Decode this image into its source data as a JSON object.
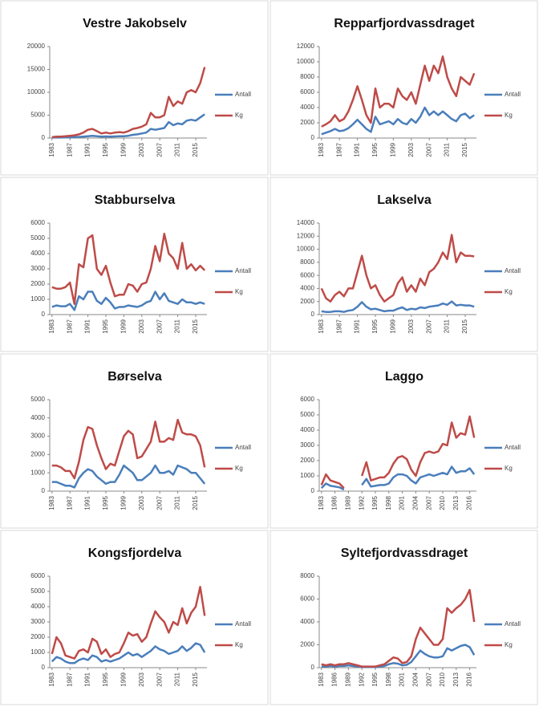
{
  "chart_data": [
    {
      "type": "line",
      "title": "Vestre Jakobselv",
      "categories": [
        "1983",
        null,
        null,
        null,
        "1987",
        null,
        null,
        null,
        "1991",
        null,
        null,
        null,
        "1995",
        null,
        null,
        null,
        "1999",
        null,
        null,
        null,
        "2003",
        null,
        null,
        null,
        "2007",
        null,
        null,
        null,
        "2011",
        null,
        null,
        null,
        "2015",
        null,
        null
      ],
      "series": [
        {
          "name": "Antall",
          "color": "#4a7ebb",
          "values": [
            100,
            100,
            100,
            150,
            150,
            200,
            250,
            300,
            400,
            500,
            400,
            300,
            350,
            300,
            350,
            400,
            400,
            500,
            700,
            800,
            1000,
            1200,
            2000,
            1800,
            2000,
            2200,
            3500,
            2800,
            3200,
            3000,
            3800,
            4000,
            3800,
            4500,
            5200
          ]
        },
        {
          "name": "Kg",
          "color": "#be4b48",
          "values": [
            200,
            300,
            300,
            400,
            500,
            600,
            800,
            1200,
            1800,
            2000,
            1500,
            1000,
            1200,
            1000,
            1200,
            1300,
            1200,
            1500,
            2000,
            2200,
            2500,
            3000,
            5500,
            4500,
            4500,
            5000,
            9000,
            7000,
            8000,
            7500,
            10000,
            10500,
            10000,
            12000,
            15500
          ]
        }
      ],
      "ylim": [
        0,
        20000
      ],
      "yticks": [
        0,
        5000,
        10000,
        15000,
        20000
      ]
    },
    {
      "type": "line",
      "title": "Repparfjordvassdraget",
      "categories": [
        "1983",
        null,
        null,
        null,
        "1987",
        null,
        null,
        null,
        "1991",
        null,
        null,
        null,
        "1995",
        null,
        null,
        null,
        "1999",
        null,
        null,
        null,
        "2003",
        null,
        null,
        null,
        "2007",
        null,
        null,
        null,
        "2011",
        null,
        null,
        null,
        "2015",
        null,
        null
      ],
      "series": [
        {
          "name": "Antall",
          "color": "#4a7ebb",
          "values": [
            500,
            700,
            900,
            1200,
            900,
            1000,
            1300,
            1800,
            2400,
            1800,
            1200,
            800,
            2800,
            1800,
            2000,
            2200,
            1800,
            2500,
            2000,
            1800,
            2500,
            2000,
            2800,
            4000,
            3000,
            3500,
            3000,
            3500,
            3000,
            2500,
            2200,
            3000,
            3200,
            2600,
            3000
          ]
        },
        {
          "name": "Kg",
          "color": "#be4b48",
          "values": [
            1500,
            1800,
            2200,
            3000,
            2200,
            2500,
            3500,
            5000,
            6800,
            5000,
            3000,
            2000,
            6500,
            4000,
            4500,
            4500,
            4000,
            6500,
            5500,
            5000,
            6000,
            4500,
            7000,
            9500,
            7500,
            9500,
            8500,
            10700,
            8000,
            6500,
            5500,
            8000,
            7500,
            7000,
            8500
          ]
        }
      ],
      "ylim": [
        0,
        12000
      ],
      "yticks": [
        0,
        2000,
        4000,
        6000,
        8000,
        10000,
        12000
      ]
    },
    {
      "type": "line",
      "title": "Stabburselva",
      "categories": [
        "1983",
        null,
        null,
        null,
        "1987",
        null,
        null,
        null,
        "1991",
        null,
        null,
        null,
        "1995",
        null,
        null,
        null,
        "1999",
        null,
        null,
        null,
        "2003",
        null,
        null,
        null,
        "2007",
        null,
        null,
        null,
        "2011",
        null,
        null,
        null,
        "2015",
        null,
        null
      ],
      "series": [
        {
          "name": "Antall",
          "color": "#4a7ebb",
          "values": [
            500,
            600,
            550,
            550,
            700,
            300,
            1200,
            1000,
            1500,
            1500,
            900,
            700,
            1100,
            800,
            400,
            500,
            500,
            600,
            550,
            500,
            600,
            800,
            900,
            1500,
            1000,
            1400,
            900,
            800,
            700,
            1000,
            800,
            800,
            700,
            800,
            700
          ]
        },
        {
          "name": "Kg",
          "color": "#be4b48",
          "values": [
            1800,
            1700,
            1700,
            1800,
            2100,
            700,
            3300,
            3100,
            5000,
            5200,
            3000,
            2600,
            3200,
            2100,
            1200,
            1300,
            1300,
            2000,
            1900,
            1500,
            2000,
            2100,
            3000,
            4500,
            3500,
            5300,
            4000,
            3700,
            3000,
            4700,
            3000,
            3300,
            2900,
            3200,
            2900
          ]
        }
      ],
      "ylim": [
        0,
        6000
      ],
      "yticks": [
        0,
        1000,
        2000,
        3000,
        4000,
        5000,
        6000
      ]
    },
    {
      "type": "line",
      "title": "Lakselva",
      "categories": [
        "1983",
        null,
        null,
        null,
        "1987",
        null,
        null,
        null,
        "1991",
        null,
        null,
        null,
        "1995",
        null,
        null,
        null,
        "1999",
        null,
        null,
        null,
        "2003",
        null,
        null,
        null,
        "2007",
        null,
        null,
        null,
        "2011",
        null,
        null,
        null,
        "2015",
        null,
        null
      ],
      "series": [
        {
          "name": "Antall",
          "color": "#4a7ebb",
          "values": [
            500,
            400,
            400,
            500,
            500,
            400,
            600,
            700,
            1200,
            1900,
            1200,
            800,
            900,
            700,
            500,
            600,
            600,
            900,
            1100,
            700,
            900,
            800,
            1100,
            1000,
            1200,
            1300,
            1400,
            1700,
            1500,
            2000,
            1400,
            1500,
            1400,
            1400,
            1200
          ]
        },
        {
          "name": "Kg",
          "color": "#be4b48",
          "values": [
            4000,
            2500,
            2000,
            3000,
            3500,
            2800,
            4000,
            4000,
            6500,
            9000,
            6000,
            4000,
            4500,
            3000,
            2000,
            2500,
            3000,
            4800,
            5700,
            3500,
            4500,
            3500,
            5500,
            4500,
            6500,
            7000,
            8000,
            9500,
            8500,
            12200,
            8000,
            9500,
            9000,
            9000,
            8900
          ]
        }
      ],
      "ylim": [
        0,
        14000
      ],
      "yticks": [
        0,
        2000,
        4000,
        6000,
        8000,
        10000,
        12000,
        14000
      ]
    },
    {
      "type": "line",
      "title": "Børselva",
      "categories": [
        "1983",
        null,
        null,
        null,
        "1987",
        null,
        null,
        null,
        "1991",
        null,
        null,
        null,
        "1995",
        null,
        null,
        null,
        "1999",
        null,
        null,
        null,
        "2003",
        null,
        null,
        null,
        "2007",
        null,
        null,
        null,
        "2011",
        null,
        null,
        null,
        "2015",
        null,
        null
      ],
      "series": [
        {
          "name": "Antall",
          "color": "#4a7ebb",
          "values": [
            500,
            500,
            400,
            300,
            300,
            200,
            700,
            1000,
            1200,
            1100,
            800,
            600,
            400,
            500,
            500,
            900,
            1400,
            1200,
            1000,
            600,
            600,
            800,
            1000,
            1400,
            1000,
            1000,
            1100,
            900,
            1400,
            1300,
            1200,
            1000,
            1000,
            700,
            400
          ]
        },
        {
          "name": "Kg",
          "color": "#be4b48",
          "values": [
            1400,
            1400,
            1300,
            1100,
            1100,
            700,
            1600,
            2800,
            3500,
            3400,
            2500,
            1800,
            1200,
            1500,
            1400,
            2200,
            3000,
            3300,
            3100,
            1800,
            1900,
            2300,
            2700,
            3800,
            2700,
            2700,
            2900,
            2800,
            3900,
            3200,
            3100,
            3100,
            3000,
            2500,
            1300
          ]
        }
      ],
      "ylim": [
        0,
        5000
      ],
      "yticks": [
        0,
        1000,
        2000,
        3000,
        4000,
        5000
      ]
    },
    {
      "type": "line",
      "title": "Laggo",
      "categories": [
        "1983",
        null,
        null,
        "1986",
        null,
        null,
        "1989",
        null,
        null,
        "1992",
        null,
        null,
        "1995",
        null,
        null,
        "1998",
        null,
        null,
        "2001",
        null,
        null,
        "2004",
        null,
        null,
        "2007",
        null,
        null,
        "2010",
        null,
        null,
        "2013",
        null,
        null,
        "2016",
        null
      ],
      "series": [
        {
          "name": "Antall",
          "color": "#4a7ebb",
          "values": [
            200,
            500,
            350,
            300,
            250,
            100,
            null,
            null,
            null,
            400,
            800,
            300,
            350,
            400,
            400,
            500,
            900,
            1100,
            1100,
            1000,
            700,
            500,
            900,
            1000,
            1100,
            1000,
            1100,
            1200,
            1100,
            1600,
            1200,
            1300,
            1300,
            1500,
            1100
          ]
        },
        {
          "name": "Kg",
          "color": "#be4b48",
          "values": [
            400,
            1100,
            700,
            600,
            500,
            200,
            null,
            null,
            null,
            1000,
            1900,
            700,
            800,
            900,
            900,
            1200,
            1800,
            2200,
            2300,
            2100,
            1400,
            1000,
            1900,
            2500,
            2600,
            2500,
            2600,
            3100,
            3000,
            4500,
            3500,
            3800,
            3700,
            4900,
            3500
          ]
        }
      ],
      "ylim": [
        0,
        6000
      ],
      "yticks": [
        0,
        1000,
        2000,
        3000,
        4000,
        5000,
        6000
      ]
    },
    {
      "type": "line",
      "title": "Kongsfjordelva",
      "categories": [
        "1983",
        null,
        null,
        null,
        "1987",
        null,
        null,
        null,
        "1991",
        null,
        null,
        null,
        "1995",
        null,
        null,
        null,
        "1999",
        null,
        null,
        null,
        "2003",
        null,
        null,
        null,
        "2007",
        null,
        null,
        null,
        "2011",
        null,
        null,
        null,
        "2015",
        null,
        null
      ],
      "series": [
        {
          "name": "Antall",
          "color": "#4a7ebb",
          "values": [
            400,
            700,
            600,
            400,
            300,
            300,
            500,
            600,
            500,
            800,
            700,
            400,
            500,
            400,
            500,
            600,
            800,
            1000,
            800,
            900,
            700,
            900,
            1100,
            1400,
            1200,
            1100,
            900,
            1000,
            1100,
            1400,
            1100,
            1300,
            1600,
            1500,
            1000
          ]
        },
        {
          "name": "Kg",
          "color": "#be4b48",
          "values": [
            900,
            2000,
            1600,
            800,
            700,
            600,
            1100,
            1200,
            1000,
            1900,
            1700,
            900,
            1200,
            700,
            900,
            1000,
            1600,
            2300,
            2100,
            2200,
            1700,
            2000,
            2900,
            3700,
            3300,
            3000,
            2300,
            3000,
            2800,
            3900,
            2900,
            3600,
            4000,
            5300,
            3400
          ]
        }
      ],
      "ylim": [
        0,
        6000
      ],
      "yticks": [
        0,
        1000,
        2000,
        3000,
        4000,
        5000,
        6000
      ]
    },
    {
      "type": "line",
      "title": "Syltefjordvassdraget",
      "categories": [
        "1983",
        null,
        null,
        "1986",
        null,
        null,
        "1989",
        null,
        null,
        "1992",
        null,
        null,
        "1995",
        null,
        null,
        "1998",
        null,
        null,
        "2001",
        null,
        null,
        "2004",
        null,
        null,
        "2007",
        null,
        null,
        "2010",
        null,
        null,
        "2013",
        null,
        null,
        "2016",
        null
      ],
      "series": [
        {
          "name": "Antall",
          "color": "#4a7ebb",
          "values": [
            100,
            100,
            150,
            100,
            150,
            150,
            200,
            150,
            100,
            50,
            50,
            50,
            50,
            100,
            150,
            300,
            400,
            350,
            200,
            250,
            500,
            1000,
            1500,
            1200,
            1000,
            900,
            900,
            1000,
            1700,
            1500,
            1700,
            1900,
            2000,
            1800,
            1100
          ]
        },
        {
          "name": "Kg",
          "color": "#be4b48",
          "values": [
            300,
            200,
            300,
            200,
            300,
            300,
            400,
            300,
            200,
            100,
            100,
            100,
            100,
            200,
            300,
            600,
            900,
            800,
            400,
            500,
            1000,
            2500,
            3500,
            3000,
            2500,
            2000,
            2000,
            2500,
            5200,
            4800,
            5200,
            5500,
            6000,
            6800,
            4000
          ]
        }
      ],
      "ylim": [
        0,
        8000
      ],
      "yticks": [
        0,
        2000,
        4000,
        6000,
        8000
      ]
    }
  ]
}
